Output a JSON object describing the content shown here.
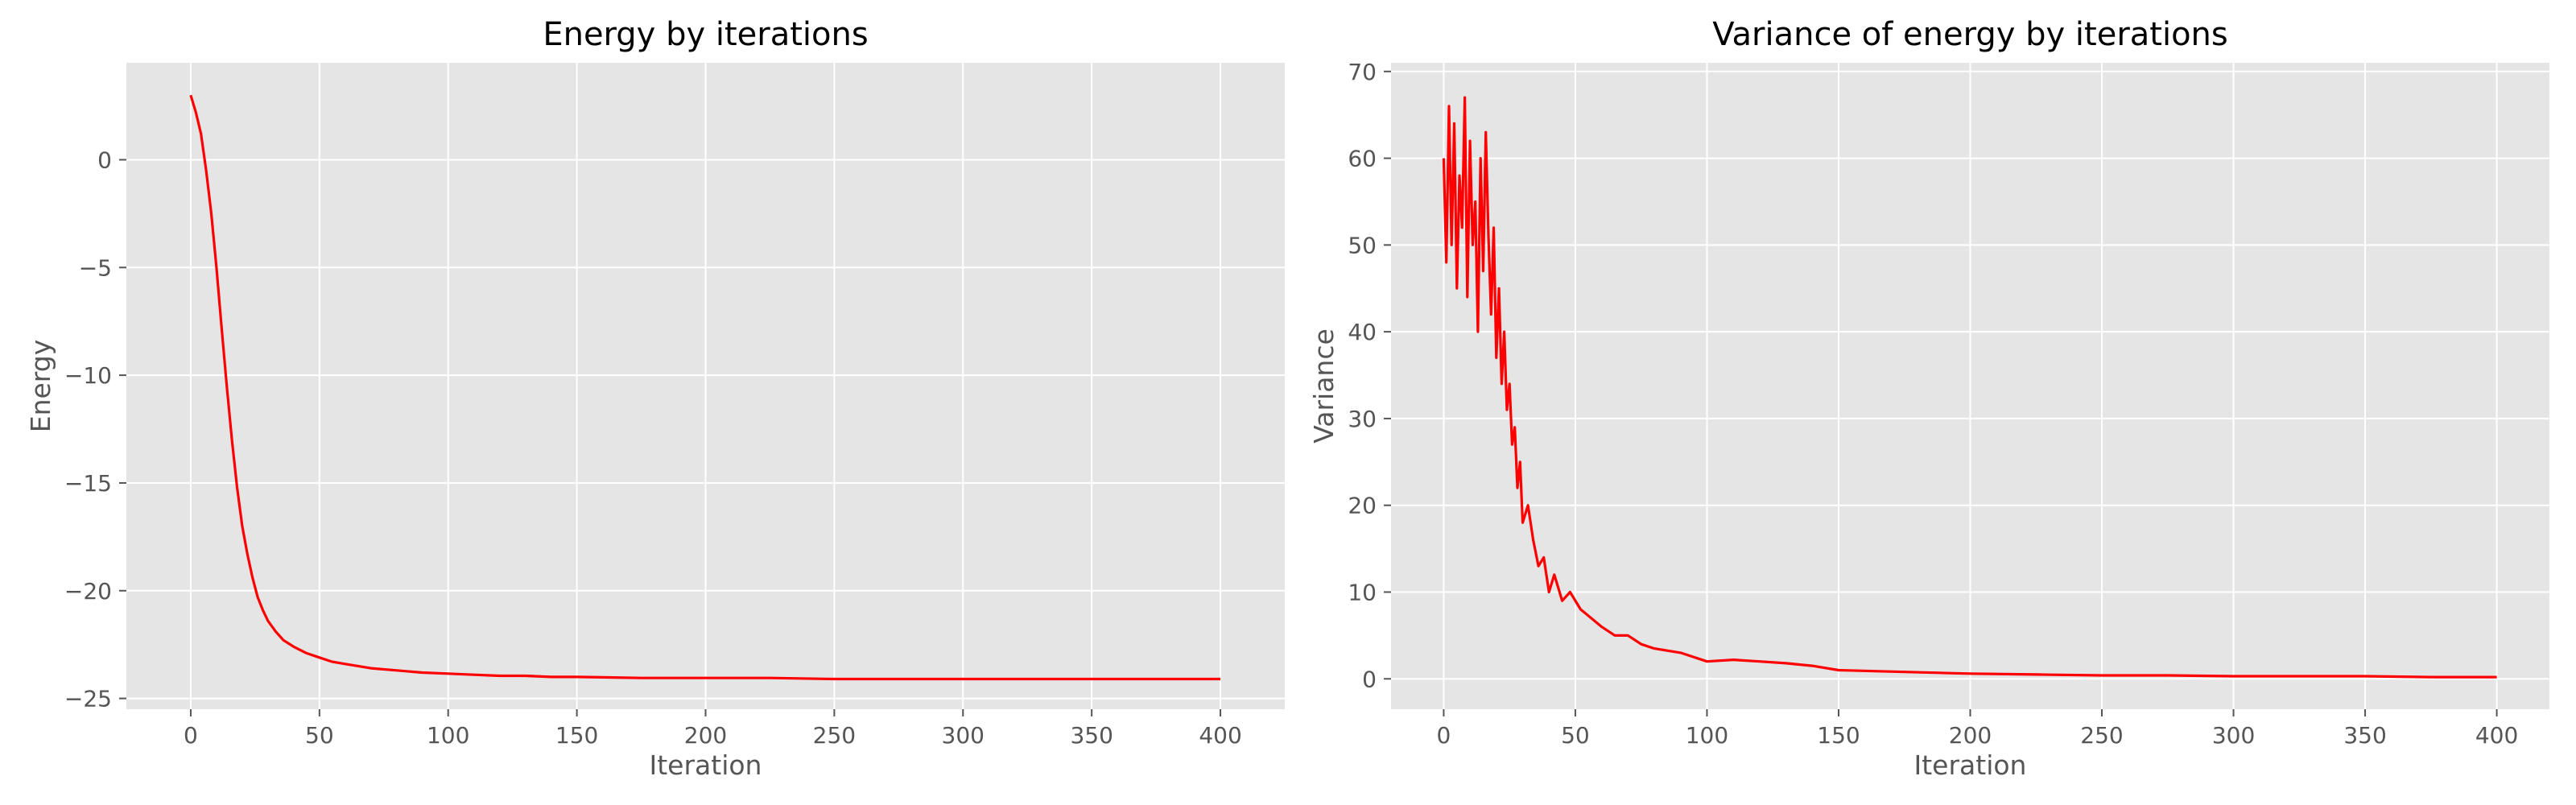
{
  "chart_data": [
    {
      "type": "line",
      "title": "Energy by iterations",
      "xlabel": "Iteration",
      "ylabel": "Energy",
      "xlim": [
        -25,
        425
      ],
      "ylim": [
        -25.5,
        4.5
      ],
      "xticks": [
        0,
        50,
        100,
        150,
        200,
        250,
        300,
        350,
        400
      ],
      "yticks": [
        0,
        -5,
        -10,
        -15,
        -20,
        -25
      ],
      "grid": true,
      "color": "#ff0000",
      "series": [
        {
          "x": [
            0,
            2,
            4,
            6,
            8,
            10,
            12,
            14,
            16,
            18,
            20,
            22,
            24,
            26,
            28,
            30,
            33,
            36,
            40,
            45,
            50,
            55,
            60,
            70,
            80,
            90,
            100,
            110,
            120,
            130,
            140,
            150,
            175,
            200,
            225,
            250,
            275,
            300,
            325,
            350,
            375,
            400
          ],
          "y": [
            3.0,
            2.2,
            1.2,
            -0.5,
            -2.5,
            -5.0,
            -7.8,
            -10.5,
            -13.0,
            -15.2,
            -17.0,
            -18.3,
            -19.4,
            -20.3,
            -20.9,
            -21.4,
            -21.9,
            -22.3,
            -22.6,
            -22.9,
            -23.1,
            -23.3,
            -23.4,
            -23.6,
            -23.7,
            -23.8,
            -23.85,
            -23.9,
            -23.95,
            -23.95,
            -24.0,
            -24.0,
            -24.05,
            -24.05,
            -24.05,
            -24.1,
            -24.1,
            -24.1,
            -24.1,
            -24.1,
            -24.1,
            -24.1
          ]
        }
      ]
    },
    {
      "type": "line",
      "title": "Variance of energy by iterations",
      "xlabel": "Iteration",
      "ylabel": "Variance",
      "xlim": [
        -20,
        420
      ],
      "ylim": [
        -3.5,
        71
      ],
      "xticks": [
        0,
        50,
        100,
        150,
        200,
        250,
        300,
        350,
        400
      ],
      "yticks": [
        0,
        10,
        20,
        30,
        40,
        50,
        60,
        70
      ],
      "grid": true,
      "color": "#ff0000",
      "series": [
        {
          "x": [
            0,
            1,
            2,
            3,
            4,
            5,
            6,
            7,
            8,
            9,
            10,
            11,
            12,
            13,
            14,
            15,
            16,
            17,
            18,
            19,
            20,
            21,
            22,
            23,
            24,
            25,
            26,
            27,
            28,
            29,
            30,
            32,
            34,
            36,
            38,
            40,
            42,
            45,
            48,
            52,
            56,
            60,
            65,
            70,
            75,
            80,
            90,
            100,
            110,
            120,
            130,
            140,
            150,
            175,
            200,
            225,
            250,
            275,
            300,
            325,
            350,
            375,
            400
          ],
          "y": [
            60,
            48,
            66,
            50,
            64,
            45,
            58,
            52,
            67,
            44,
            62,
            50,
            55,
            40,
            60,
            47,
            63,
            51,
            42,
            52,
            37,
            45,
            34,
            40,
            31,
            34,
            27,
            29,
            22,
            25,
            18,
            20,
            16,
            13,
            14,
            10,
            12,
            9,
            10,
            8,
            7,
            6,
            5,
            5,
            4,
            3.5,
            3,
            2,
            2.2,
            2,
            1.8,
            1.5,
            1,
            0.8,
            0.6,
            0.5,
            0.4,
            0.4,
            0.3,
            0.3,
            0.3,
            0.2,
            0.2
          ]
        }
      ]
    }
  ]
}
